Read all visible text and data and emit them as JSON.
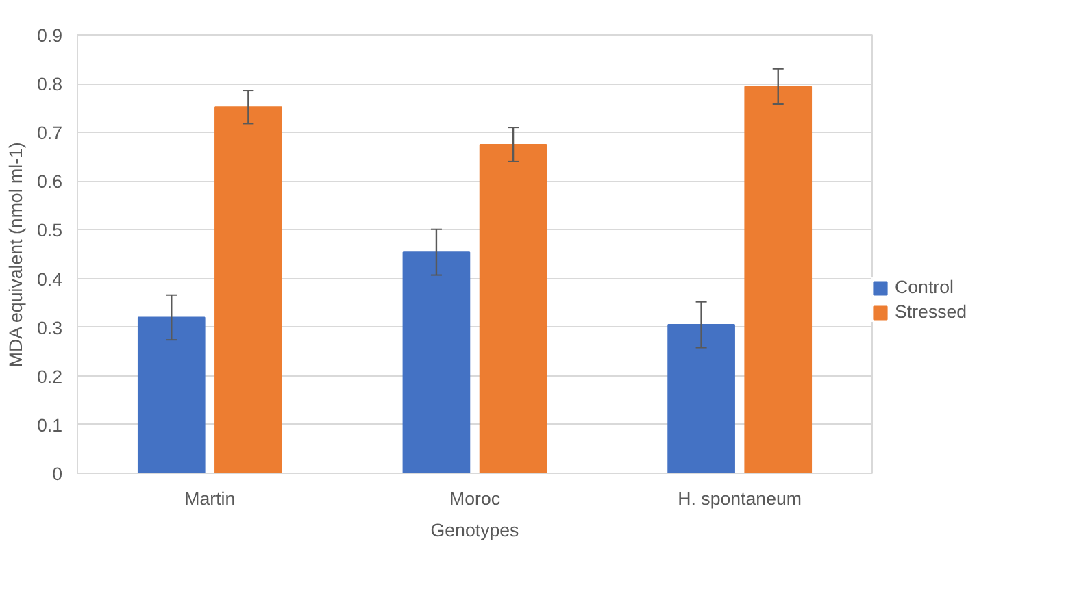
{
  "chart_data": {
    "type": "bar",
    "xlabel": "Genotypes",
    "ylabel": "MDA equivalent (nmol ml-1)",
    "categories": [
      "Martin",
      "Moroc",
      "H. spontaneum"
    ],
    "series": [
      {
        "name": "Control",
        "color": "#4472c4",
        "values": [
          0.32,
          0.454,
          0.305
        ],
        "errors": [
          0.046,
          0.047,
          0.047
        ]
      },
      {
        "name": "Stressed",
        "color": "#ed7d31",
        "values": [
          0.752,
          0.675,
          0.794
        ],
        "errors": [
          0.034,
          0.035,
          0.036
        ]
      }
    ],
    "ylim": [
      0,
      0.9
    ],
    "yticks": [
      0,
      0.1,
      0.2,
      0.3,
      0.4,
      0.5,
      0.6,
      0.7,
      0.8,
      0.9
    ],
    "grid": "y",
    "legend": "right"
  }
}
